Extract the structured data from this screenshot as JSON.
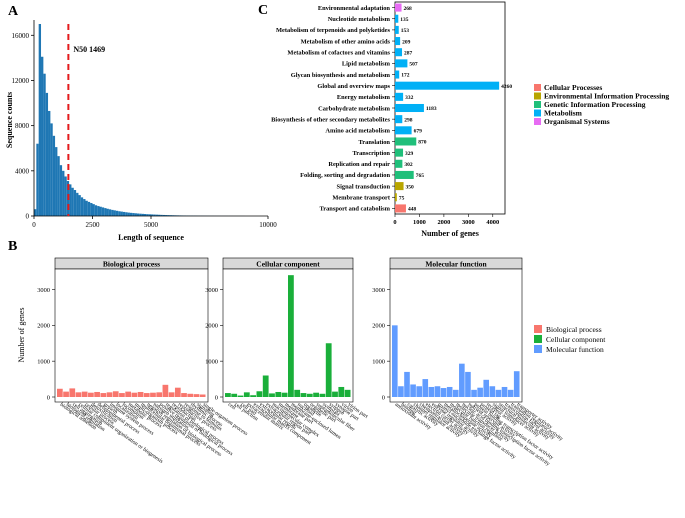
{
  "panels": {
    "A": "A",
    "B": "B",
    "C": "C"
  },
  "colors": {
    "histogram": "#1f77b4",
    "n50": "#e41a1c",
    "cellular_processes": "#f8766d",
    "environmental": "#b8a500",
    "genetic": "#1fbf7a",
    "metabolism": "#00b0f6",
    "organismal": "#e76bf3",
    "bio_process": "#f8766d",
    "cell_component": "#1aaf3a",
    "mol_function": "#619cff",
    "facet_strip": "#d9d9d9"
  },
  "chart_data": [
    {
      "id": "A",
      "type": "bar",
      "title": "",
      "xlabel": "Length of sequence",
      "ylabel": "Sequence counts",
      "xlim": [
        0,
        10000
      ],
      "ylim": [
        0,
        17000
      ],
      "xticks": [
        0,
        2500,
        5000,
        10000
      ],
      "xticklabels": [
        "0",
        "2500",
        "5000",
        "10000"
      ],
      "yticks": [
        0,
        4000,
        8000,
        12000,
        16000
      ],
      "yticklabels": [
        "0",
        "4000",
        "8000",
        "12000",
        "16000"
      ],
      "bin_width": 100,
      "bin_start": 0,
      "values": [
        600,
        6400,
        17000,
        14100,
        12600,
        10900,
        9300,
        8200,
        7100,
        6100,
        5300,
        4500,
        4000,
        3500,
        3100,
        2800,
        2500,
        2300,
        2050,
        1850,
        1650,
        1500,
        1350,
        1250,
        1150,
        1050,
        950,
        880,
        820,
        760,
        700,
        640,
        590,
        540,
        500,
        460,
        420,
        390,
        360,
        330,
        300,
        280,
        260,
        240,
        220,
        205,
        190,
        175,
        160,
        150,
        140,
        130,
        120,
        110,
        100,
        92,
        85,
        78,
        72,
        66,
        60,
        55,
        50,
        46,
        42,
        38,
        35,
        32,
        30,
        28,
        25,
        23,
        21,
        19,
        17,
        15,
        14,
        13,
        12,
        11,
        10,
        9,
        8,
        8,
        7,
        6,
        6,
        5,
        5,
        4
      ],
      "annotation": {
        "label": "N50 1469",
        "x": 1469
      }
    },
    {
      "id": "C",
      "type": "bar",
      "orientation": "horizontal",
      "xlabel": "Number of genes",
      "ylabel": "",
      "xlim": [
        0,
        4500
      ],
      "xticks": [
        0,
        1000,
        2000,
        3000,
        4000
      ],
      "xticklabels": [
        "0",
        "1000",
        "2000",
        "3000",
        "4000"
      ],
      "categories": [
        "Environmental adaptation",
        "Nucleotide metabolism",
        "Metabolism of terpenoids and polyketides",
        "Metabolism of other amino acids",
        "Metabolism of cofactors and vitamins",
        "Lipid metabolism",
        "Glycan biosynthesis and metabolism",
        "Global and overview maps",
        "Energy metabolism",
        "Carbohydrate metabolism",
        "Biosynthesis of other secondary metabolites",
        "Amino acid metabolism",
        "Translation",
        "Transcription",
        "Replication and repair",
        "Folding, sorting and degradation",
        "Signal transduction",
        "Membrane transport",
        "Transport and catabolism"
      ],
      "values": [
        268,
        135,
        153,
        209,
        287,
        507,
        172,
        4260,
        332,
        1183,
        298,
        679,
        870,
        329,
        302,
        765,
        350,
        75,
        448
      ],
      "value_labels": [
        "268",
        "135",
        "153",
        "209",
        "287",
        "507",
        "172",
        "4260",
        "332",
        "1183",
        "298",
        "679",
        "870",
        "329",
        "302",
        "765",
        "350",
        "75",
        "448"
      ],
      "groups": [
        "organismal",
        "metabolism",
        "metabolism",
        "metabolism",
        "metabolism",
        "metabolism",
        "metabolism",
        "metabolism",
        "metabolism",
        "metabolism",
        "metabolism",
        "metabolism",
        "genetic",
        "genetic",
        "genetic",
        "genetic",
        "environmental",
        "environmental",
        "cellular_processes"
      ],
      "legend": {
        "position": "right",
        "entries": [
          {
            "key": "cellular_processes",
            "label": "Cellular Processes"
          },
          {
            "key": "environmental",
            "label": "Environmental Information Processing"
          },
          {
            "key": "genetic",
            "label": "Genetic Information Processing"
          },
          {
            "key": "metabolism",
            "label": "Metabolism"
          },
          {
            "key": "organismal",
            "label": "Organismal Systems"
          }
        ]
      }
    },
    {
      "id": "B",
      "type": "bar",
      "ylabel": "Number of genes",
      "ylim": [
        0,
        3600
      ],
      "yticks": [
        0,
        1000,
        2000,
        3000
      ],
      "yticklabels": [
        "0",
        "1000",
        "2000",
        "3000"
      ],
      "legend": {
        "position": "right",
        "entries": [
          {
            "key": "bio_process",
            "label": "Biological process"
          },
          {
            "key": "cell_component",
            "label": "Cellular component"
          },
          {
            "key": "mol_function",
            "label": "Molecular function"
          }
        ]
      },
      "facets": [
        {
          "key": "bio_process",
          "title": "Biological process",
          "categories": [
            "biological adhesion",
            "biological regulation",
            "cell aggregation",
            "cellular component organization or biogenesis",
            "cellular process",
            "detoxification",
            "developmental process",
            "growth",
            "immune system process",
            "localization",
            "locomotion",
            "metabolic process",
            "multi-organism process",
            "multicellular organismal process",
            "negative regulation of biological process",
            "nitrogen utilization",
            "positive regulation of biological process",
            "regulation of biological process",
            "reproduction",
            "reproductive process",
            "response to stimulus",
            "rhythmic process",
            "signaling",
            "single-organism process"
          ],
          "values": [
            230,
            150,
            240,
            130,
            150,
            120,
            140,
            110,
            130,
            160,
            110,
            150,
            120,
            140,
            110,
            120,
            130,
            340,
            130,
            260,
            110,
            90,
            80,
            70
          ]
        },
        {
          "key": "cell_component",
          "title": "Cellular component",
          "categories": [
            "cell",
            "cell junction",
            "cell part",
            "extracellular matrix",
            "extracellular matrix component",
            "extracellular region",
            "extracellular region part",
            "macromolecular complex",
            "membrane",
            "membrane part",
            "membrane-enclosed lumen",
            "nucleoid",
            "organelle",
            "organelle part",
            "supramolecular fiber",
            "symplast",
            "synapse",
            "synapse part",
            "virion",
            "virion part"
          ],
          "values": [
            110,
            90,
            40,
            130,
            50,
            160,
            600,
            100,
            140,
            120,
            3400,
            200,
            110,
            90,
            120,
            90,
            1500,
            150,
            280,
            200
          ]
        },
        {
          "key": "mol_function",
          "title": "Molecular function",
          "categories": [
            "antioxidant activity",
            "binding",
            "catalytic activity",
            "channel regulator activity",
            "chemoattractant activity",
            "electron carrier activity",
            "enzyme regulator activity",
            "guanyl-nucleotide exchange factor activity",
            "metallochaperone activity",
            "molecular function regulator",
            "molecular transducer activity",
            "nucleic acid binding transcription factor activity",
            "nutrient reservoir activity",
            "protein binding transcription factor activity",
            "protein tag",
            "receptor activity",
            "signal transducer activity",
            "structural molecule activity",
            "transcription factor activity",
            "translation regulator activity",
            "transporter activity"
          ],
          "values": [
            2000,
            300,
            700,
            350,
            300,
            500,
            280,
            300,
            250,
            280,
            200,
            930,
            700,
            200,
            260,
            480,
            300,
            200,
            280,
            200,
            720
          ]
        }
      ]
    }
  ]
}
